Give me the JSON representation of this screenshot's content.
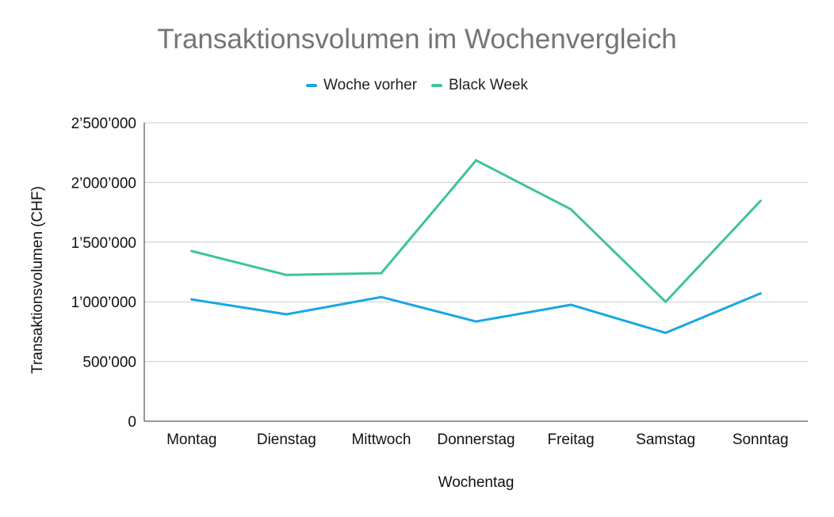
{
  "chart_data": {
    "type": "line",
    "title": "Transaktionsvolumen im Wochenvergleich",
    "xlabel": "Wochentag",
    "ylabel": "Transaktionsvolumen (CHF)",
    "categories": [
      "Montag",
      "Dienstag",
      "Mittwoch",
      "Donnerstag",
      "Freitag",
      "Samstag",
      "Sonntag"
    ],
    "ylim": [
      0,
      2500000
    ],
    "yticks": [
      0,
      500000,
      1000000,
      1500000,
      2000000,
      2500000
    ],
    "ytick_labels": [
      "0",
      "500’000",
      "1’000’000",
      "1’500’000",
      "2’000’000",
      "2’500’000"
    ],
    "grid": true,
    "legend_position": "top",
    "series": [
      {
        "name": "Woche vorher",
        "color": "#1aa6e4",
        "values": [
          1020000,
          895000,
          1040000,
          835000,
          975000,
          740000,
          1070000
        ]
      },
      {
        "name": "Black Week",
        "color": "#3ec49a",
        "values": [
          1425000,
          1225000,
          1240000,
          2185000,
          1775000,
          1000000,
          1845000
        ]
      }
    ]
  }
}
